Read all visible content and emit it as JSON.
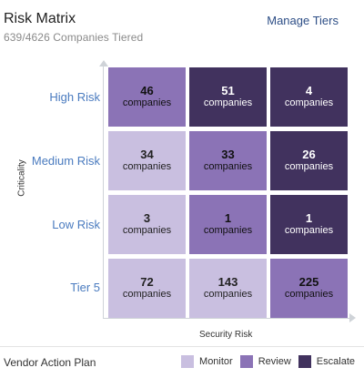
{
  "header": {
    "title": "Risk Matrix",
    "subtitle": "639/4626 Companies Tiered",
    "manage_label": "Manage Tiers"
  },
  "axes": {
    "y_label": "Criticality",
    "x_label": "Security Risk"
  },
  "rows": [
    {
      "label": "High Risk",
      "cells": [
        {
          "count": "46",
          "unit": "companies",
          "action": "Review"
        },
        {
          "count": "51",
          "unit": "companies",
          "action": "Escalate"
        },
        {
          "count": "4",
          "unit": "companies",
          "action": "Escalate"
        }
      ]
    },
    {
      "label": "Medium Risk",
      "cells": [
        {
          "count": "34",
          "unit": "companies",
          "action": "Monitor"
        },
        {
          "count": "33",
          "unit": "companies",
          "action": "Review"
        },
        {
          "count": "26",
          "unit": "companies",
          "action": "Escalate"
        }
      ]
    },
    {
      "label": "Low Risk",
      "cells": [
        {
          "count": "3",
          "unit": "companies",
          "action": "Monitor"
        },
        {
          "count": "1",
          "unit": "companies",
          "action": "Review"
        },
        {
          "count": "1",
          "unit": "companies",
          "action": "Escalate"
        }
      ]
    },
    {
      "label": "Tier 5",
      "cells": [
        {
          "count": "72",
          "unit": "companies",
          "action": "Monitor"
        },
        {
          "count": "143",
          "unit": "companies",
          "action": "Monitor"
        },
        {
          "count": "225",
          "unit": "companies",
          "action": "Review"
        }
      ]
    }
  ],
  "footer": {
    "title": "Vendor Action Plan",
    "legend": [
      {
        "label": "Monitor",
        "color": "#c9bfe0"
      },
      {
        "label": "Review",
        "color": "#8b73b6"
      },
      {
        "label": "Escalate",
        "color": "#41325e"
      }
    ]
  }
}
